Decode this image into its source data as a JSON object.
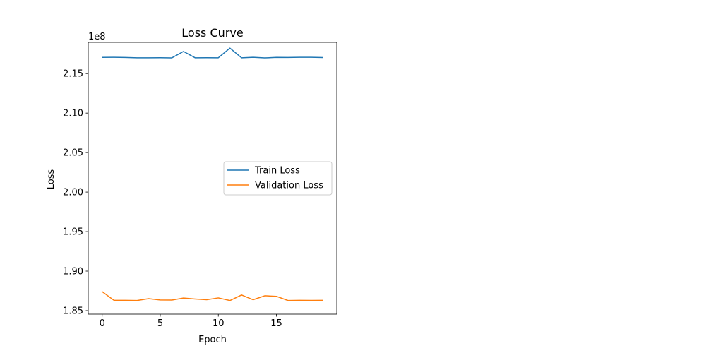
{
  "chart_data": {
    "type": "line",
    "title": "Loss Curve",
    "xlabel": "Epoch",
    "ylabel": "Loss",
    "offset_label": "1e8",
    "x": [
      0,
      1,
      2,
      3,
      4,
      5,
      6,
      7,
      8,
      9,
      10,
      11,
      12,
      13,
      14,
      15,
      16,
      17,
      18,
      19
    ],
    "series": [
      {
        "name": "Train Loss",
        "color": "#1f77b4",
        "values": [
          2.1705,
          2.1706,
          2.1704,
          2.17,
          2.17,
          2.1701,
          2.1699,
          2.178,
          2.17,
          2.1701,
          2.17,
          2.1822,
          2.17,
          2.1706,
          2.1698,
          2.1705,
          2.1704,
          2.1706,
          2.1706,
          2.1703
        ]
      },
      {
        "name": "Validation Loss",
        "color": "#ff7f0e",
        "values": [
          1.874,
          1.8632,
          1.863,
          1.8628,
          1.8652,
          1.8635,
          1.8634,
          1.8659,
          1.8647,
          1.8638,
          1.8661,
          1.8628,
          1.8698,
          1.8638,
          1.8688,
          1.8681,
          1.8628,
          1.863,
          1.8629,
          1.863
        ]
      }
    ],
    "xlim": [
      -1.2,
      20.2
    ],
    "ylim": [
      1.8455,
      2.1895
    ],
    "xticks": [
      0,
      5,
      10,
      15
    ],
    "xtick_labels": [
      "0",
      "5",
      "10",
      "15"
    ],
    "yticks": [
      1.85,
      1.9,
      1.95,
      2.0,
      2.05,
      2.1,
      2.15
    ],
    "ytick_labels": [
      "1.85",
      "1.90",
      "1.95",
      "2.00",
      "2.05",
      "2.10",
      "2.15"
    ],
    "grid": false,
    "legend_position": "center-right"
  }
}
